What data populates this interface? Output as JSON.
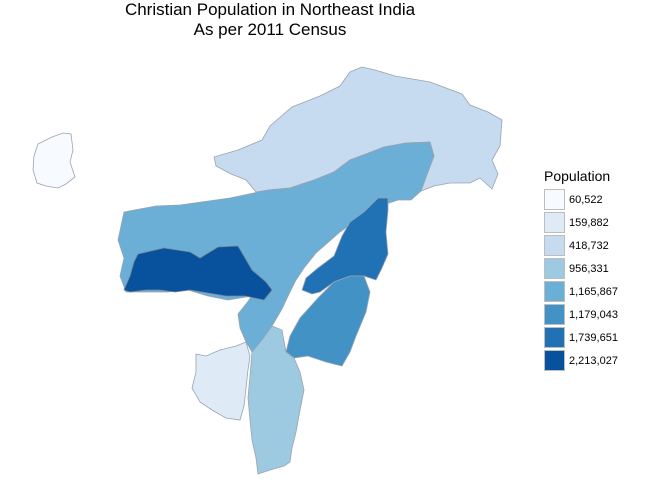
{
  "title": {
    "line1": "Christian Population in Northeast India",
    "line2": "As per 2011 Census"
  },
  "legend": {
    "title": "Population",
    "items": [
      {
        "label": "60,522",
        "color": "#f7fbff"
      },
      {
        "label": "159,882",
        "color": "#deebf7"
      },
      {
        "label": "418,732",
        "color": "#c6dbef"
      },
      {
        "label": "956,331",
        "color": "#9ecae1"
      },
      {
        "label": "1,165,867",
        "color": "#6baed6"
      },
      {
        "label": "1,179,043",
        "color": "#4292c6"
      },
      {
        "label": "1,739,651",
        "color": "#2171b5"
      },
      {
        "label": "2,213,027",
        "color": "#08519c"
      }
    ]
  },
  "regions": [
    {
      "key": "sikkim",
      "value": 60522
    },
    {
      "key": "tripura",
      "value": 159882
    },
    {
      "key": "arunachal",
      "value": 418732
    },
    {
      "key": "mizoram",
      "value": 956331
    },
    {
      "key": "assam",
      "value": 1165867
    },
    {
      "key": "manipur",
      "value": 1179043
    },
    {
      "key": "nagaland",
      "value": 1739651
    },
    {
      "key": "meghalaya",
      "value": 2213027
    }
  ]
}
